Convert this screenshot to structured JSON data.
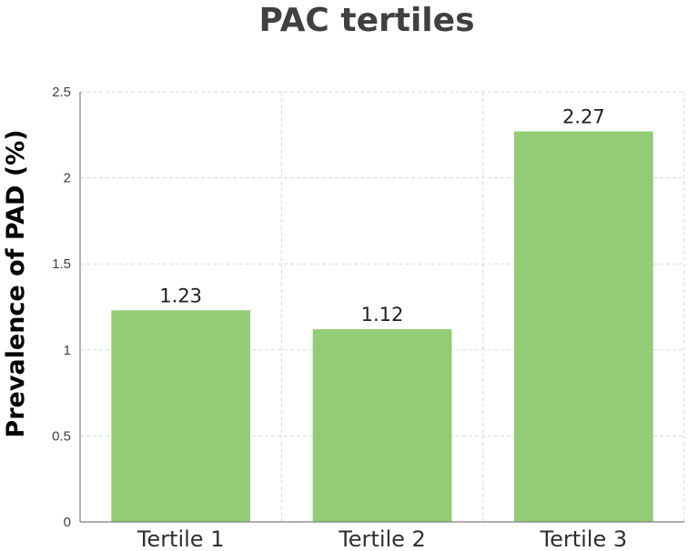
{
  "chart_data": {
    "type": "bar",
    "title": "PAC tertiles",
    "xlabel": "",
    "ylabel": "Prevalence of PAD (%)",
    "categories": [
      "Tertile 1",
      "Tertile 2",
      "Tertile 3"
    ],
    "values": [
      1.23,
      1.12,
      2.27
    ],
    "data_labels": [
      "1.23",
      "1.12",
      "2.27"
    ],
    "ylim": [
      0,
      2.5
    ],
    "yticks": [
      0,
      0.5,
      1,
      1.5,
      2,
      2.5
    ],
    "ytick_labels": [
      "0",
      "0.5",
      "1",
      "1.5",
      "2",
      "2.5"
    ],
    "grid": true,
    "legend": "none",
    "colors": {
      "bar": "#92cc74",
      "grid": "#d9d9d9",
      "axis": "#7f7f7f",
      "title": "#404040"
    }
  }
}
